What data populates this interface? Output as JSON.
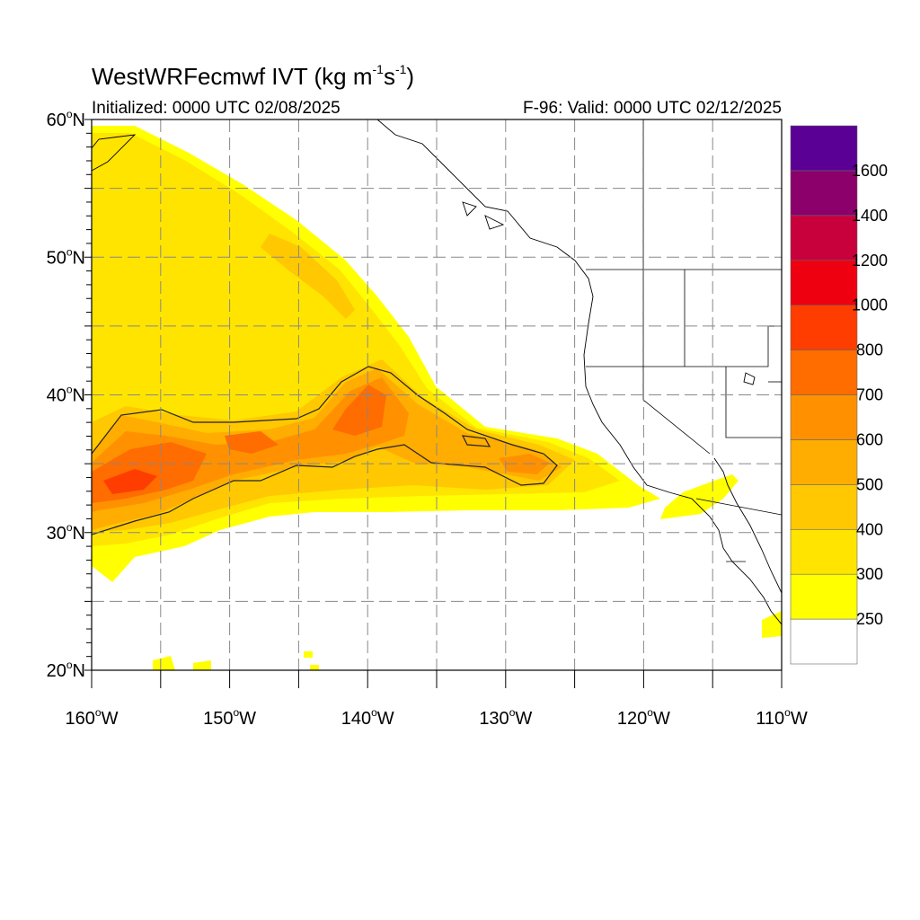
{
  "title": {
    "prefix": "WestWRFecmwf IVT (kg m",
    "exp1": "-1",
    "middle": "s",
    "exp2": "-1",
    "suffix": ")"
  },
  "subtitle_left": "Initialized: 0000 UTC 02/08/2025",
  "subtitle_right": "F-96: Valid: 0000 UTC 02/12/2025",
  "map": {
    "lon_range": [
      -160,
      -110
    ],
    "lat_range": [
      20,
      60
    ],
    "lon_labels": [
      {
        "lon": -160,
        "text": "160"
      },
      {
        "lon": -150,
        "text": "150"
      },
      {
        "lon": -140,
        "text": "140"
      },
      {
        "lon": -130,
        "text": "130"
      },
      {
        "lon": -120,
        "text": "120"
      },
      {
        "lon": -110,
        "text": "110"
      }
    ],
    "lon_suffix": "W",
    "lat_labels": [
      {
        "lat": 60,
        "text": "60"
      },
      {
        "lat": 50,
        "text": "50"
      },
      {
        "lat": 40,
        "text": "40"
      },
      {
        "lat": 30,
        "text": "30"
      },
      {
        "lat": 20,
        "text": "20"
      }
    ],
    "lat_suffix": "N",
    "degree_symbol": "o",
    "grid_lons": [
      -155,
      -150,
      -145,
      -140,
      -135,
      -130,
      -125,
      -120,
      -115
    ],
    "grid_lats": [
      25,
      30,
      35,
      40,
      45,
      50,
      55
    ]
  },
  "colorbar": {
    "labels": [
      "250",
      "300",
      "400",
      "500",
      "600",
      "700",
      "800",
      "1000",
      "1200",
      "1400",
      "1600"
    ],
    "colors_bottom_to_top": [
      "#ffffff",
      "#ffff00",
      "#ffe400",
      "#ffc800",
      "#ffad00",
      "#ff9100",
      "#ff6c00",
      "#ff3d00",
      "#ee0010",
      "#c8003c",
      "#8c006c",
      "#5a0094"
    ]
  },
  "chart_data": {
    "type": "heatmap",
    "title": "WestWRFecmwf IVT (kg m-1 s-1)",
    "variable": "Integrated Vapor Transport",
    "units": "kg m-1 s-1",
    "contour_levels": [
      250,
      300,
      400,
      500,
      600,
      700,
      800,
      1000,
      1200,
      1400,
      1600
    ],
    "outlined_contour": 500,
    "peak_value_approx": 800,
    "features": [
      "atmospheric river band from ~160W 33N eastward to ~122W 33N",
      "secondary narrow plume from ~160W 58N southeastward to ~137W 42N",
      "maximum IVT (700-800) near 157-152W 33-35N and near 140W 38-41N"
    ]
  }
}
